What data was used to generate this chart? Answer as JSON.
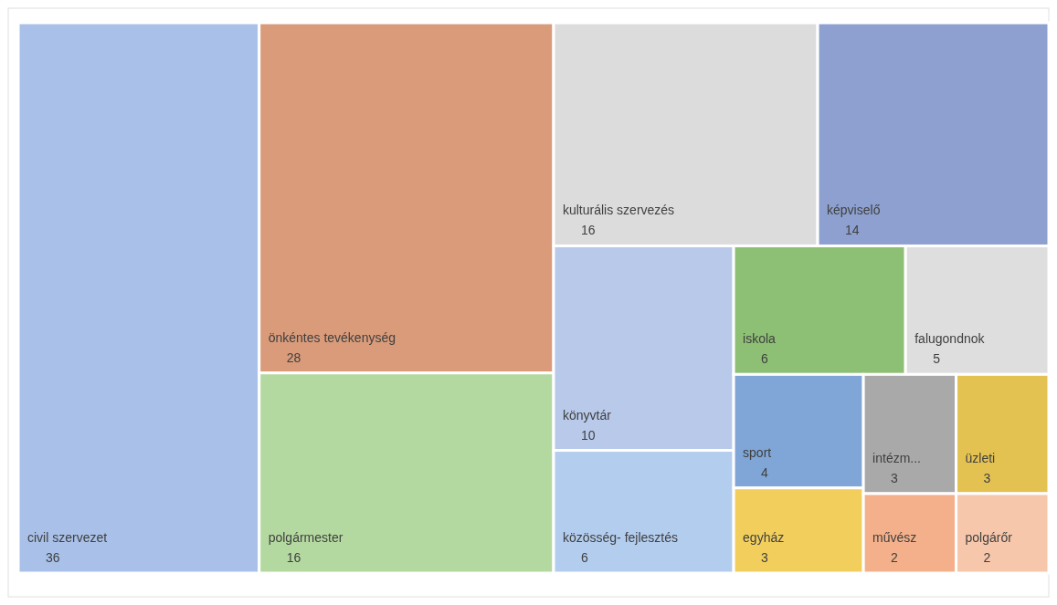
{
  "chart_data": {
    "type": "other",
    "data_labels": true,
    "categories": [
      "civil szervezet",
      "önkéntes tevékenység",
      "polgármester",
      "kulturális szervezés",
      "képviselő",
      "könyvtár",
      "közösség- fejlesztés",
      "iskola",
      "falugondnok",
      "sport",
      "egyház",
      "intézm...",
      "üzleti",
      "művész",
      "polgárőr"
    ],
    "values": [
      36,
      28,
      16,
      16,
      14,
      10,
      6,
      6,
      5,
      4,
      3,
      3,
      3,
      2,
      2
    ],
    "colors": [
      "#a9c1e8",
      "#d99b7a",
      "#b4d9a0",
      "#dcdcdc",
      "#8da0cf",
      "#b8c9ea",
      "#b3cdee",
      "#8dbf74",
      "#dedede",
      "#7fa6d6",
      "#f2cf5c",
      "#a9a9a9",
      "#e4c252",
      "#f4b08a",
      "#f6c7ab"
    ]
  }
}
